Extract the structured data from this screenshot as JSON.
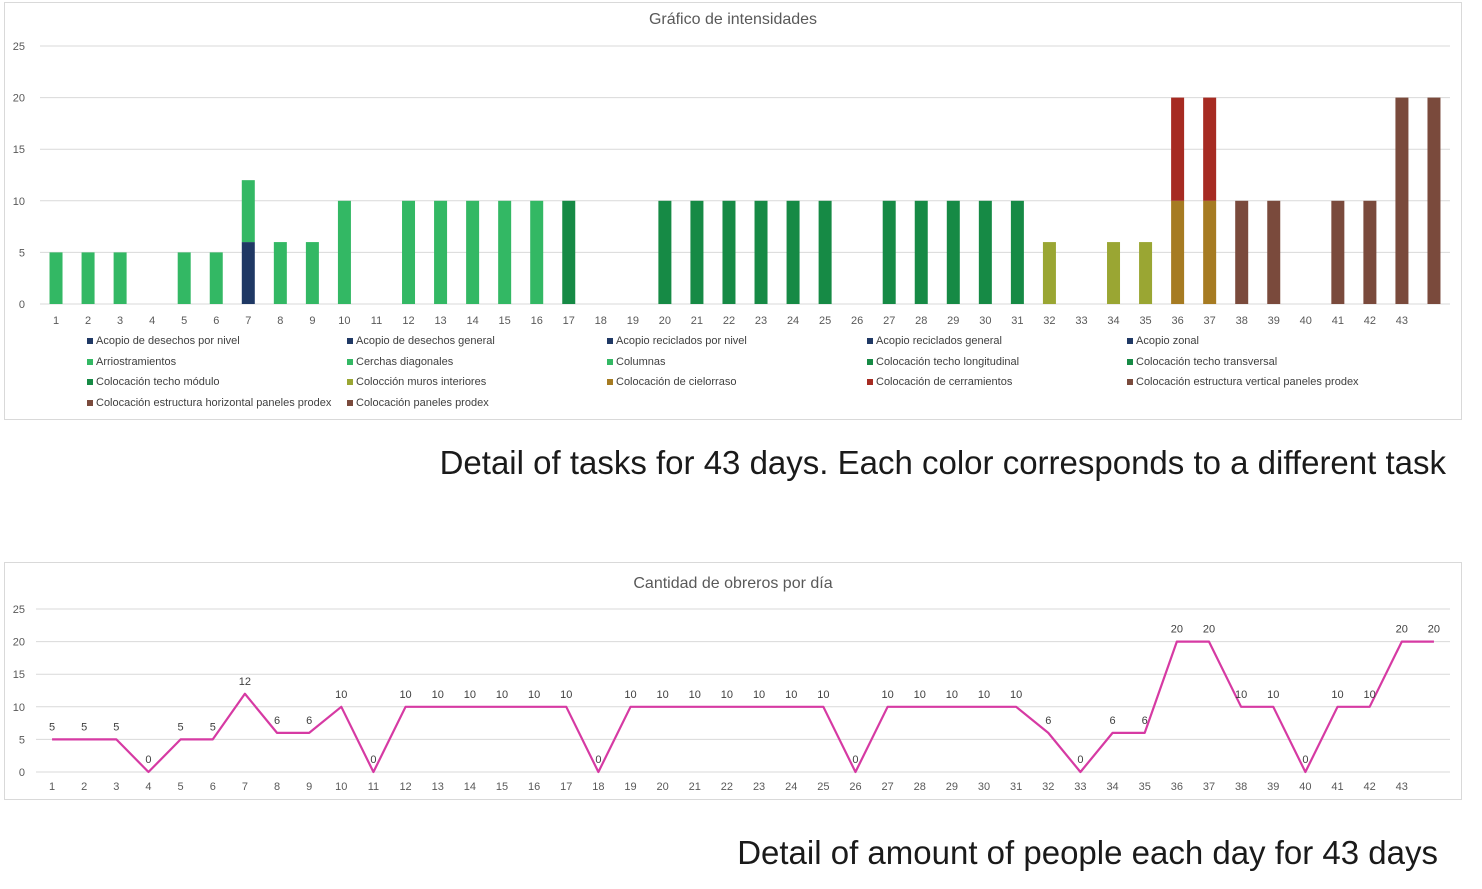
{
  "captions": {
    "tasks": "Detail of tasks for 43 days. Each color corresponds to a different task",
    "people": "Detail of amount of people each day for 43 days"
  },
  "chart_data": [
    {
      "type": "bar",
      "stacked": true,
      "title": "Gráfico de intensidades",
      "xlabel": "",
      "ylabel": "",
      "ylim": [
        0,
        25
      ],
      "yticks": [
        0,
        5,
        10,
        15,
        20,
        25
      ],
      "grid": true,
      "legend_position": "bottom",
      "categories": [
        "1",
        "2",
        "3",
        "4",
        "5",
        "6",
        "7",
        "8",
        "9",
        "10",
        "11",
        "12",
        "13",
        "14",
        "15",
        "16",
        "17",
        "18",
        "19",
        "20",
        "21",
        "22",
        "23",
        "24",
        "25",
        "26",
        "27",
        "28",
        "29",
        "30",
        "31",
        "32",
        "33",
        "34",
        "35",
        "36",
        "37",
        "38",
        "39",
        "40",
        "41",
        "42",
        "43",
        ""
      ],
      "series": [
        {
          "name": "Acopio de desechos por nivel",
          "color": "#1f3864",
          "values": [
            0,
            0,
            0,
            0,
            0,
            0,
            6,
            0,
            0,
            0,
            0,
            0,
            0,
            0,
            0,
            0,
            0,
            0,
            0,
            0,
            0,
            0,
            0,
            0,
            0,
            0,
            0,
            0,
            0,
            0,
            0,
            0,
            0,
            0,
            0,
            0,
            0,
            0,
            0,
            0,
            0,
            0,
            0,
            0
          ]
        },
        {
          "name": "Acopio de desechos general",
          "color": "#1f3864",
          "values": [
            0,
            0,
            0,
            0,
            0,
            0,
            0,
            0,
            0,
            0,
            0,
            0,
            0,
            0,
            0,
            0,
            0,
            0,
            0,
            0,
            0,
            0,
            0,
            0,
            0,
            0,
            0,
            0,
            0,
            0,
            0,
            0,
            0,
            0,
            0,
            0,
            0,
            0,
            0,
            0,
            0,
            0,
            0,
            0
          ]
        },
        {
          "name": "Acopio reciclados por nivel",
          "color": "#1f3864",
          "values": [
            0,
            0,
            0,
            0,
            0,
            0,
            0,
            0,
            0,
            0,
            0,
            0,
            0,
            0,
            0,
            0,
            0,
            0,
            0,
            0,
            0,
            0,
            0,
            0,
            0,
            0,
            0,
            0,
            0,
            0,
            0,
            0,
            0,
            0,
            0,
            0,
            0,
            0,
            0,
            0,
            0,
            0,
            0,
            0
          ]
        },
        {
          "name": "Acopio reciclados general",
          "color": "#1f3864",
          "values": [
            0,
            0,
            0,
            0,
            0,
            0,
            0,
            0,
            0,
            0,
            0,
            0,
            0,
            0,
            0,
            0,
            0,
            0,
            0,
            0,
            0,
            0,
            0,
            0,
            0,
            0,
            0,
            0,
            0,
            0,
            0,
            0,
            0,
            0,
            0,
            0,
            0,
            0,
            0,
            0,
            0,
            0,
            0,
            0
          ]
        },
        {
          "name": "Acopio zonal",
          "color": "#1f3864",
          "values": [
            0,
            0,
            0,
            0,
            0,
            0,
            0,
            0,
            0,
            0,
            0,
            0,
            0,
            0,
            0,
            0,
            0,
            0,
            0,
            0,
            0,
            0,
            0,
            0,
            0,
            0,
            0,
            0,
            0,
            0,
            0,
            0,
            0,
            0,
            0,
            0,
            0,
            0,
            0,
            0,
            0,
            0,
            0,
            0
          ]
        },
        {
          "name": "Arriostramientos",
          "color": "#33b864",
          "values": [
            5,
            5,
            5,
            0,
            5,
            5,
            6,
            6,
            6,
            0,
            0,
            0,
            0,
            0,
            0,
            0,
            0,
            0,
            0,
            0,
            0,
            0,
            0,
            0,
            0,
            0,
            0,
            0,
            0,
            0,
            0,
            0,
            0,
            0,
            0,
            0,
            0,
            0,
            0,
            0,
            0,
            0,
            0,
            0
          ]
        },
        {
          "name": "Cerchas diagonales",
          "color": "#33b864",
          "values": [
            0,
            0,
            0,
            0,
            0,
            0,
            0,
            0,
            0,
            10,
            0,
            10,
            10,
            10,
            10,
            10,
            0,
            0,
            0,
            0,
            0,
            0,
            0,
            0,
            0,
            0,
            0,
            0,
            0,
            0,
            0,
            0,
            0,
            0,
            0,
            0,
            0,
            0,
            0,
            0,
            0,
            0,
            0,
            0
          ]
        },
        {
          "name": "Columnas",
          "color": "#33b864",
          "values": [
            0,
            0,
            0,
            0,
            0,
            0,
            0,
            0,
            0,
            0,
            0,
            0,
            0,
            0,
            0,
            0,
            0,
            0,
            0,
            0,
            0,
            0,
            0,
            0,
            0,
            0,
            0,
            0,
            0,
            0,
            0,
            0,
            0,
            0,
            0,
            0,
            0,
            0,
            0,
            0,
            0,
            0,
            0,
            0
          ]
        },
        {
          "name": "Colocación techo longitudinal",
          "color": "#168a45",
          "values": [
            0,
            0,
            0,
            0,
            0,
            0,
            0,
            0,
            0,
            0,
            0,
            0,
            0,
            0,
            0,
            0,
            10,
            0,
            0,
            10,
            10,
            10,
            10,
            10,
            10,
            0,
            0,
            0,
            0,
            0,
            0,
            0,
            0,
            0,
            0,
            0,
            0,
            0,
            0,
            0,
            0,
            0,
            0,
            0
          ]
        },
        {
          "name": "Colocación techo transversal",
          "color": "#168a45",
          "values": [
            0,
            0,
            0,
            0,
            0,
            0,
            0,
            0,
            0,
            0,
            0,
            0,
            0,
            0,
            0,
            0,
            0,
            0,
            0,
            0,
            0,
            0,
            0,
            0,
            0,
            0,
            10,
            10,
            10,
            10,
            10,
            0,
            0,
            0,
            0,
            0,
            0,
            0,
            0,
            0,
            0,
            0,
            0,
            0
          ]
        },
        {
          "name": "Colocación techo módulo",
          "color": "#168a45",
          "values": [
            0,
            0,
            0,
            0,
            0,
            0,
            0,
            0,
            0,
            0,
            0,
            0,
            0,
            0,
            0,
            0,
            0,
            0,
            0,
            0,
            0,
            0,
            0,
            0,
            0,
            0,
            0,
            0,
            0,
            0,
            0,
            0,
            0,
            0,
            0,
            0,
            0,
            0,
            0,
            0,
            0,
            0,
            0,
            0
          ]
        },
        {
          "name": "Colocción muros interiores",
          "color": "#9aa633",
          "values": [
            0,
            0,
            0,
            0,
            0,
            0,
            0,
            0,
            0,
            0,
            0,
            0,
            0,
            0,
            0,
            0,
            0,
            0,
            0,
            0,
            0,
            0,
            0,
            0,
            0,
            0,
            0,
            0,
            0,
            0,
            0,
            6,
            0,
            6,
            6,
            0,
            0,
            0,
            0,
            0,
            0,
            0,
            0,
            0
          ]
        },
        {
          "name": "Colocación de cielorraso",
          "color": "#a67b22",
          "values": [
            0,
            0,
            0,
            0,
            0,
            0,
            0,
            0,
            0,
            0,
            0,
            0,
            0,
            0,
            0,
            0,
            0,
            0,
            0,
            0,
            0,
            0,
            0,
            0,
            0,
            0,
            0,
            0,
            0,
            0,
            0,
            0,
            0,
            0,
            0,
            10,
            10,
            0,
            0,
            0,
            0,
            0,
            0,
            0
          ]
        },
        {
          "name": "Colocación de cerramientos",
          "color": "#a62b22",
          "values": [
            0,
            0,
            0,
            0,
            0,
            0,
            0,
            0,
            0,
            0,
            0,
            0,
            0,
            0,
            0,
            0,
            0,
            0,
            0,
            0,
            0,
            0,
            0,
            0,
            0,
            0,
            0,
            0,
            0,
            0,
            0,
            0,
            0,
            0,
            0,
            10,
            10,
            0,
            0,
            0,
            0,
            0,
            0,
            0
          ]
        },
        {
          "name": "Colocación estructura vertical paneles prodex",
          "color": "#7a4a3c",
          "values": [
            0,
            0,
            0,
            0,
            0,
            0,
            0,
            0,
            0,
            0,
            0,
            0,
            0,
            0,
            0,
            0,
            0,
            0,
            0,
            0,
            0,
            0,
            0,
            0,
            0,
            0,
            0,
            0,
            0,
            0,
            0,
            0,
            0,
            0,
            0,
            0,
            0,
            10,
            10,
            0,
            10,
            10,
            20,
            20
          ]
        },
        {
          "name": "Colocación estructura horizontal paneles prodex",
          "color": "#7a4a3c",
          "values": [
            0,
            0,
            0,
            0,
            0,
            0,
            0,
            0,
            0,
            0,
            0,
            0,
            0,
            0,
            0,
            0,
            0,
            0,
            0,
            0,
            0,
            0,
            0,
            0,
            0,
            0,
            0,
            0,
            0,
            0,
            0,
            0,
            0,
            0,
            0,
            0,
            0,
            0,
            0,
            0,
            0,
            0,
            0,
            0
          ]
        },
        {
          "name": "Colocación paneles prodex",
          "color": "#7a4a3c",
          "values": [
            0,
            0,
            0,
            0,
            0,
            0,
            0,
            0,
            0,
            0,
            0,
            0,
            0,
            0,
            0,
            0,
            0,
            0,
            0,
            0,
            0,
            0,
            0,
            0,
            0,
            0,
            0,
            0,
            0,
            0,
            0,
            0,
            0,
            0,
            0,
            0,
            0,
            0,
            0,
            0,
            0,
            0,
            0,
            0
          ]
        }
      ]
    },
    {
      "type": "line",
      "title": "Cantidad de obreros por día",
      "xlabel": "",
      "ylabel": "",
      "ylim": [
        0,
        25
      ],
      "yticks": [
        0,
        5,
        10,
        15,
        20,
        25
      ],
      "grid": true,
      "line_color": "#d63aa3",
      "categories": [
        "1",
        "2",
        "3",
        "4",
        "5",
        "6",
        "7",
        "8",
        "9",
        "10",
        "11",
        "12",
        "13",
        "14",
        "15",
        "16",
        "17",
        "18",
        "19",
        "20",
        "21",
        "22",
        "23",
        "24",
        "25",
        "26",
        "27",
        "28",
        "29",
        "30",
        "31",
        "32",
        "33",
        "34",
        "35",
        "36",
        "37",
        "38",
        "39",
        "40",
        "41",
        "42",
        "43",
        ""
      ],
      "values": [
        5,
        5,
        5,
        0,
        5,
        5,
        12,
        6,
        6,
        10,
        0,
        10,
        10,
        10,
        10,
        10,
        10,
        0,
        10,
        10,
        10,
        10,
        10,
        10,
        10,
        0,
        10,
        10,
        10,
        10,
        10,
        6,
        0,
        6,
        6,
        20,
        20,
        10,
        10,
        0,
        10,
        10,
        20,
        20
      ]
    }
  ]
}
